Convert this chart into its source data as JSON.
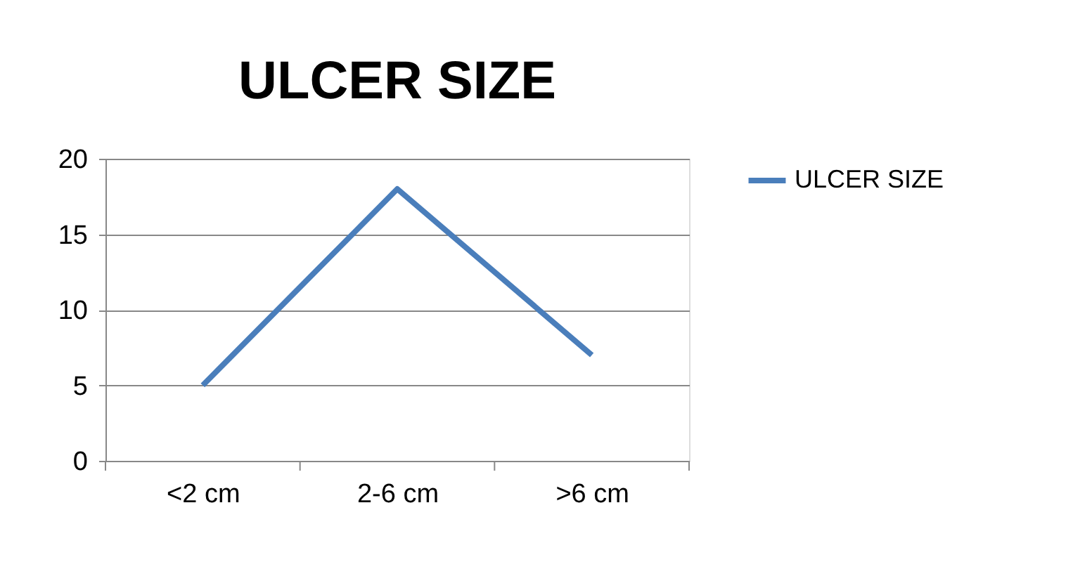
{
  "chart_data": {
    "type": "line",
    "title": "ULCER SIZE",
    "categories": [
      "<2 cm",
      "2-6 cm",
      ">6 cm"
    ],
    "series": [
      {
        "name": "ULCER SIZE",
        "color": "#4a7ebb",
        "values": [
          5,
          18,
          7
        ]
      }
    ],
    "ylim": [
      0,
      20
    ],
    "yticks": [
      0,
      5,
      10,
      15,
      20
    ],
    "grid": "y",
    "legend": "right",
    "marker": "none",
    "line_style": "solid"
  }
}
